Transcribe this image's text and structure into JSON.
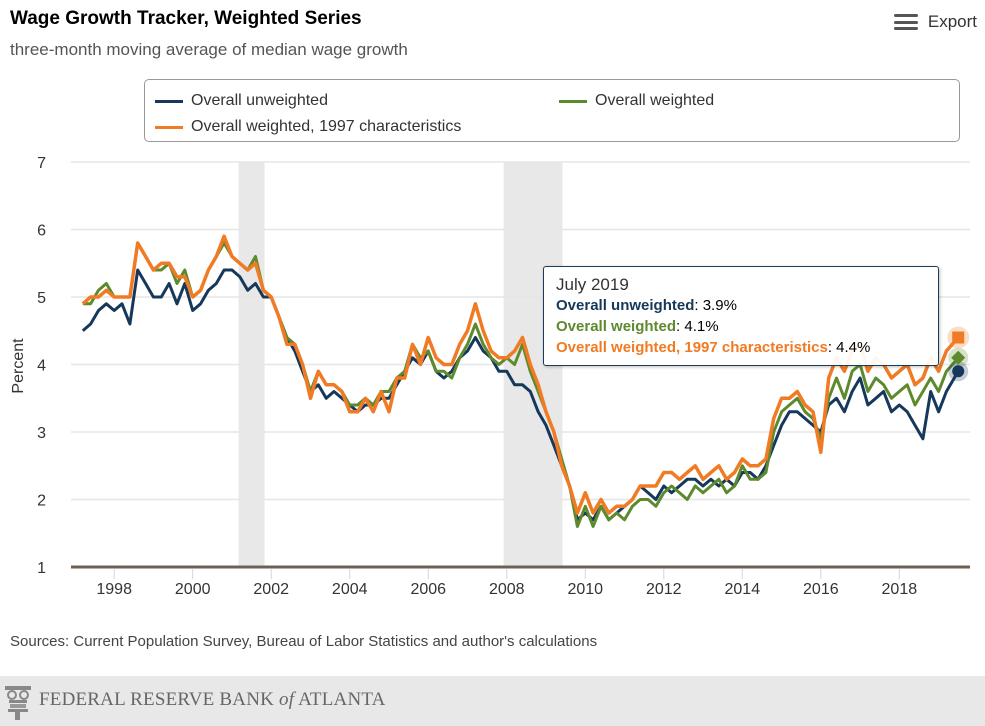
{
  "header": {
    "title": "Wage Growth Tracker, Weighted Series",
    "subtitle": "three-month moving average of median wage growth",
    "export_label": "Export",
    "export_icon": "hamburger-menu-icon"
  },
  "colors": {
    "unweighted": "#16385a",
    "weighted": "#5e8a2e",
    "weighted_1997": "#f07b24",
    "recession": "#e8e8e8",
    "grid": "#e6e6e6"
  },
  "tooltip": {
    "date": "July 2019",
    "rows": [
      {
        "label": "Overall unweighted",
        "value": "3.9%"
      },
      {
        "label": "Overall weighted",
        "value": "4.1%"
      },
      {
        "label": "Overall weighted, 1997 characteristics",
        "value": "4.4%"
      }
    ]
  },
  "footer": {
    "sources": "Sources: Current Population Survey, Bureau of Labor Statistics and author's calculations",
    "org_name_a": "FEDERAL RESERVE BANK ",
    "org_name_of": "of",
    "org_name_b": " ATLANTA"
  },
  "chart_data": {
    "type": "line",
    "title": "Wage Growth Tracker, Weighted Series",
    "subtitle": "three-month moving average of median wage growth",
    "xlabel": "",
    "ylabel": "Percent",
    "ylim": [
      1,
      7
    ],
    "xlim": [
      1996.9,
      2019.8
    ],
    "yticks": [
      1,
      2,
      3,
      4,
      5,
      6,
      7
    ],
    "xticks": [
      1998,
      2000,
      2002,
      2004,
      2006,
      2008,
      2010,
      2012,
      2014,
      2016,
      2018
    ],
    "grid": true,
    "legend_position": "top",
    "recessions": [
      [
        2001.17,
        2001.83
      ],
      [
        2007.92,
        2009.42
      ]
    ],
    "x": [
      1997.2,
      1997.4,
      1997.6,
      1997.8,
      1998.0,
      1998.2,
      1998.4,
      1998.6,
      1998.8,
      1999.0,
      1999.2,
      1999.4,
      1999.6,
      1999.8,
      2000.0,
      2000.2,
      2000.4,
      2000.6,
      2000.8,
      2001.0,
      2001.2,
      2001.4,
      2001.6,
      2001.8,
      2002.0,
      2002.2,
      2002.4,
      2002.6,
      2002.8,
      2003.0,
      2003.2,
      2003.4,
      2003.6,
      2003.8,
      2004.0,
      2004.2,
      2004.4,
      2004.6,
      2004.8,
      2005.0,
      2005.2,
      2005.4,
      2005.6,
      2005.8,
      2006.0,
      2006.2,
      2006.4,
      2006.6,
      2006.8,
      2007.0,
      2007.2,
      2007.4,
      2007.6,
      2007.8,
      2008.0,
      2008.2,
      2008.4,
      2008.6,
      2008.8,
      2009.0,
      2009.2,
      2009.4,
      2009.6,
      2009.8,
      2010.0,
      2010.2,
      2010.4,
      2010.6,
      2010.8,
      2011.0,
      2011.2,
      2011.4,
      2011.6,
      2011.8,
      2012.0,
      2012.2,
      2012.4,
      2012.6,
      2012.8,
      2013.0,
      2013.2,
      2013.4,
      2013.6,
      2013.8,
      2014.0,
      2014.2,
      2014.4,
      2014.6,
      2014.8,
      2015.0,
      2015.2,
      2015.4,
      2015.6,
      2015.8,
      2016.0,
      2016.2,
      2016.4,
      2016.6,
      2016.8,
      2017.0,
      2017.2,
      2017.4,
      2017.6,
      2017.8,
      2018.0,
      2018.2,
      2018.4,
      2018.6,
      2018.8,
      2019.0,
      2019.2,
      2019.5
    ],
    "series": [
      {
        "name": "Overall unweighted",
        "color": "#16385a",
        "values": [
          4.5,
          4.6,
          4.8,
          4.9,
          4.8,
          4.9,
          4.6,
          5.4,
          5.2,
          5.0,
          5.0,
          5.2,
          4.9,
          5.2,
          4.8,
          4.9,
          5.1,
          5.2,
          5.4,
          5.4,
          5.3,
          5.1,
          5.2,
          5.0,
          5.0,
          4.7,
          4.4,
          4.2,
          3.9,
          3.6,
          3.7,
          3.5,
          3.6,
          3.5,
          3.4,
          3.3,
          3.4,
          3.4,
          3.5,
          3.5,
          3.7,
          3.9,
          4.1,
          4.0,
          4.2,
          3.9,
          3.8,
          3.9,
          4.1,
          4.2,
          4.4,
          4.2,
          4.1,
          3.9,
          3.9,
          3.7,
          3.7,
          3.6,
          3.3,
          3.1,
          2.8,
          2.5,
          2.2,
          1.7,
          1.8,
          1.7,
          1.9,
          1.7,
          1.8,
          1.9,
          2.0,
          2.2,
          2.1,
          2.0,
          2.2,
          2.1,
          2.2,
          2.3,
          2.3,
          2.2,
          2.3,
          2.2,
          2.3,
          2.2,
          2.4,
          2.4,
          2.3,
          2.5,
          2.8,
          3.1,
          3.3,
          3.3,
          3.2,
          3.1,
          3.0,
          3.4,
          3.5,
          3.3,
          3.6,
          3.8,
          3.4,
          3.5,
          3.6,
          3.3,
          3.4,
          3.3,
          3.1,
          2.9,
          3.6,
          3.3,
          3.6,
          3.9
        ]
      },
      {
        "name": "Overall weighted",
        "color": "#5e8a2e",
        "values": [
          4.9,
          4.9,
          5.1,
          5.2,
          5.0,
          5.0,
          5.0,
          5.8,
          5.6,
          5.4,
          5.4,
          5.5,
          5.2,
          5.4,
          5.0,
          5.1,
          5.4,
          5.6,
          5.8,
          5.6,
          5.5,
          5.4,
          5.6,
          5.1,
          5.0,
          4.7,
          4.4,
          4.3,
          4.0,
          3.6,
          3.9,
          3.7,
          3.7,
          3.6,
          3.4,
          3.4,
          3.5,
          3.4,
          3.6,
          3.6,
          3.8,
          3.9,
          4.3,
          4.1,
          4.2,
          3.9,
          3.9,
          3.8,
          4.1,
          4.3,
          4.6,
          4.3,
          4.1,
          4.0,
          4.1,
          4.0,
          4.3,
          3.9,
          3.6,
          3.3,
          3.0,
          2.6,
          2.2,
          1.6,
          1.9,
          1.6,
          1.9,
          1.7,
          1.8,
          1.7,
          1.9,
          2.0,
          2.0,
          1.9,
          2.1,
          2.2,
          2.1,
          2.0,
          2.2,
          2.1,
          2.2,
          2.3,
          2.1,
          2.2,
          2.5,
          2.3,
          2.3,
          2.4,
          3.0,
          3.3,
          3.4,
          3.5,
          3.3,
          3.2,
          2.9,
          3.5,
          3.8,
          3.5,
          3.9,
          4.0,
          3.6,
          3.8,
          3.7,
          3.5,
          3.6,
          3.7,
          3.4,
          3.6,
          3.8,
          3.6,
          3.9,
          4.1
        ]
      },
      {
        "name": "Overall weighted, 1997 characteristics",
        "color": "#f07b24",
        "values": [
          4.9,
          5.0,
          5.0,
          5.1,
          5.0,
          5.0,
          5.0,
          5.8,
          5.6,
          5.4,
          5.5,
          5.5,
          5.3,
          5.3,
          5.0,
          5.1,
          5.4,
          5.6,
          5.9,
          5.6,
          5.5,
          5.4,
          5.5,
          5.1,
          5.0,
          4.7,
          4.3,
          4.3,
          4.0,
          3.5,
          3.9,
          3.7,
          3.7,
          3.6,
          3.3,
          3.3,
          3.5,
          3.3,
          3.6,
          3.3,
          3.8,
          3.8,
          4.3,
          4.0,
          4.4,
          4.1,
          4.0,
          4.0,
          4.3,
          4.5,
          4.9,
          4.5,
          4.2,
          4.1,
          4.1,
          4.2,
          4.4,
          4.0,
          3.7,
          3.3,
          3.0,
          2.5,
          2.2,
          1.8,
          2.1,
          1.8,
          2.0,
          1.8,
          1.9,
          1.9,
          2.0,
          2.2,
          2.2,
          2.2,
          2.4,
          2.4,
          2.3,
          2.4,
          2.5,
          2.3,
          2.4,
          2.5,
          2.3,
          2.4,
          2.6,
          2.5,
          2.5,
          2.6,
          3.2,
          3.5,
          3.5,
          3.6,
          3.4,
          3.3,
          2.7,
          3.8,
          4.1,
          3.9,
          4.2,
          4.3,
          3.9,
          4.1,
          4.0,
          3.8,
          3.9,
          4.0,
          3.7,
          3.8,
          4.1,
          3.9,
          4.2,
          4.4
        ]
      }
    ],
    "tooltip_point": {
      "x": 2019.5,
      "date": "July 2019",
      "values": [
        3.9,
        4.1,
        4.4
      ]
    },
    "sources": "Sources: Current Population Survey, Bureau of Labor Statistics and author's calculations"
  }
}
